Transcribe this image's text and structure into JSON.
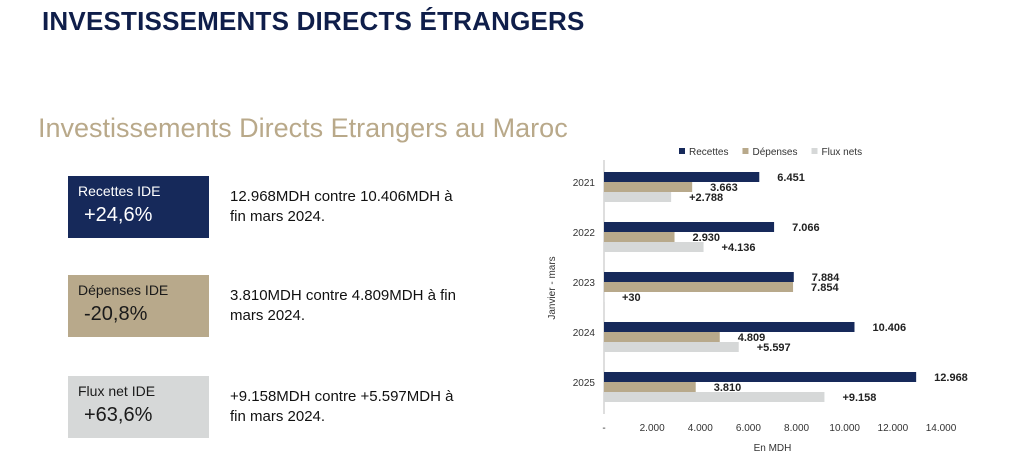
{
  "header": {
    "title": "INVESTISSEMENTS DIRECTS ÉTRANGERS"
  },
  "section": {
    "title": "Investissements Directs Etrangers au Maroc"
  },
  "kpis": [
    {
      "label": "Recettes IDE",
      "value": "+24,6%",
      "desc": "12.968MDH  contre  10.406MDH à fin mars 2024.",
      "bg": "#16295a",
      "fg": "#ffffff"
    },
    {
      "label": "Dépenses IDE",
      "value": "-20,8%",
      "desc": "3.810MDH  contre  4.809MDH  à fin mars 2024.",
      "bg": "#b8a98b",
      "fg": "#1a1a1a"
    },
    {
      "label": "Flux net IDE",
      "value": "+63,6%",
      "desc": "+9.158MDH  contre  +5.597MDH  à fin mars 2024.",
      "bg": "#d6d8d8",
      "fg": "#1a1a1a"
    }
  ],
  "chart_data": {
    "type": "bar",
    "orientation": "horizontal",
    "categories": [
      "2021",
      "2022",
      "2023",
      "2024",
      "2025"
    ],
    "series": [
      {
        "name": "Recettes",
        "values": [
          6451,
          7066,
          7884,
          10406,
          12968
        ],
        "labels": [
          "6.451",
          "7.066",
          "7.884",
          "10.406",
          "12.968"
        ],
        "color": "#16295a"
      },
      {
        "name": "Dépenses",
        "values": [
          3663,
          2930,
          7854,
          4809,
          3810
        ],
        "labels": [
          "3.663",
          "2.930",
          "7.854",
          "4.809",
          "3.810"
        ],
        "color": "#b8a98b"
      },
      {
        "name": "Flux nets",
        "values": [
          2788,
          4136,
          30,
          5597,
          9158
        ],
        "labels": [
          "+2.788",
          "+4.136",
          "+30",
          "+5.597",
          "+9.158"
        ],
        "color": "#d6d8d8"
      }
    ],
    "xticks": [
      {
        "value": 0,
        "label": "-"
      },
      {
        "value": 2000,
        "label": "2.000"
      },
      {
        "value": 4000,
        "label": "4.000"
      },
      {
        "value": 6000,
        "label": "6.000"
      },
      {
        "value": 8000,
        "label": "8.000"
      },
      {
        "value": 10000,
        "label": "10.000"
      },
      {
        "value": 12000,
        "label": "12.000"
      },
      {
        "value": 14000,
        "label": "14.000"
      }
    ],
    "xlim": [
      0,
      14000
    ],
    "xlabel": "En MDH",
    "ylabel": "Janvier - mars",
    "legend_position": "top",
    "grid": false
  }
}
